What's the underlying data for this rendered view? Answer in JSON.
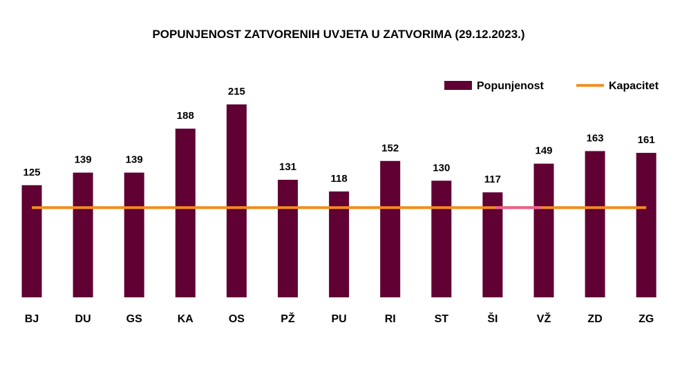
{
  "chart_data": {
    "type": "bar",
    "title": "POPUNJENOST ZATVORENIH UVJETA U ZATVORIMA (29.12.2023.)",
    "categories": [
      "BJ",
      "DU",
      "GS",
      "KA",
      "OS",
      "PŽ",
      "PU",
      "RI",
      "ST",
      "ŠI",
      "VŽ",
      "ZD",
      "ZG"
    ],
    "series": [
      {
        "name": "Popunjenost",
        "type": "bar",
        "color": "#600033",
        "values": [
          125,
          139,
          139,
          188,
          215,
          131,
          118,
          152,
          130,
          117,
          149,
          163,
          161
        ]
      },
      {
        "name": "Kapacitet",
        "type": "line",
        "color": "#f28c1c",
        "values": [
          100,
          100,
          100,
          100,
          100,
          100,
          100,
          100,
          100,
          100,
          100,
          100,
          100
        ]
      }
    ],
    "highlight_color": "#e8628f",
    "ylim": [
      0,
      215
    ],
    "data_labels": true,
    "grid": false,
    "legend_position": "top-right"
  }
}
